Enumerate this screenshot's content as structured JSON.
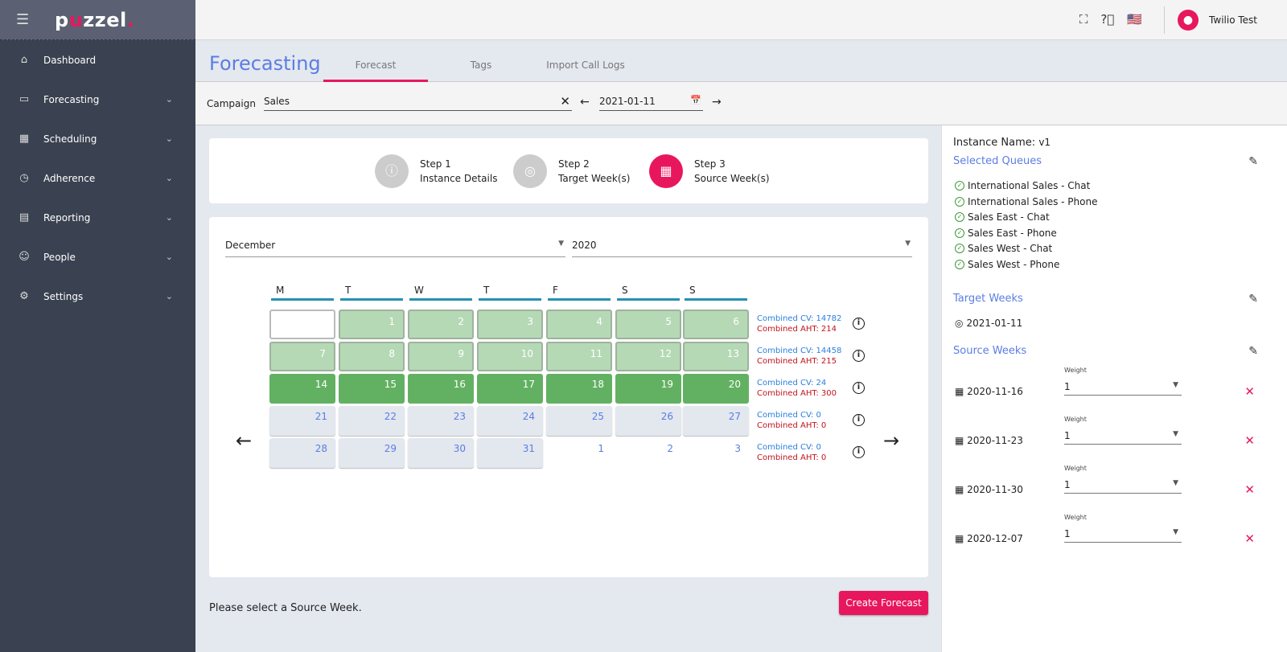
{
  "app": {
    "logo": "puzzel."
  },
  "sidebar": {
    "items": [
      {
        "label": "Dashboard",
        "icon": "home-icon"
      },
      {
        "label": "Forecasting",
        "icon": "chart-icon"
      },
      {
        "label": "Scheduling",
        "icon": "calendar-icon"
      },
      {
        "label": "Adherence",
        "icon": "watch-icon"
      },
      {
        "label": "Reporting",
        "icon": "report-icon"
      },
      {
        "label": "People",
        "icon": "people-icon"
      },
      {
        "label": "Settings",
        "icon": "gear-icon"
      }
    ]
  },
  "topbar": {
    "user": "Twilio Test"
  },
  "header": {
    "title": "Forecasting",
    "tabs": [
      "Forecast",
      "Tags",
      "Import Call Logs"
    ]
  },
  "campaign": {
    "label": "Campaign",
    "value": "Sales",
    "date": "2021-01-11"
  },
  "steps": [
    {
      "n": "Step 1",
      "label": "Instance Details"
    },
    {
      "n": "Step 2",
      "label": "Target Week(s)"
    },
    {
      "n": "Step 3",
      "label": "Source Week(s)"
    }
  ],
  "calendar": {
    "month": "December",
    "year": "2020",
    "dow": [
      "M",
      "T",
      "W",
      "T",
      "F",
      "S",
      "S"
    ],
    "weeks": [
      {
        "days": [
          "",
          "1",
          "2",
          "3",
          "4",
          "5",
          "6"
        ],
        "cv": "Combined CV: 14782",
        "aht": "Combined AHT: 214"
      },
      {
        "days": [
          "7",
          "8",
          "9",
          "10",
          "11",
          "12",
          "13"
        ],
        "cv": "Combined CV: 14458",
        "aht": "Combined AHT: 215"
      },
      {
        "days": [
          "14",
          "15",
          "16",
          "17",
          "18",
          "19",
          "20"
        ],
        "cv": "Combined CV: 24",
        "aht": "Combined AHT: 300"
      },
      {
        "days": [
          "21",
          "22",
          "23",
          "24",
          "25",
          "26",
          "27"
        ],
        "cv": "Combined CV: 0",
        "aht": "Combined AHT: 0"
      },
      {
        "days": [
          "28",
          "29",
          "30",
          "31",
          "1",
          "2",
          "3"
        ],
        "cv": "Combined CV: 0",
        "aht": "Combined AHT: 0"
      }
    ]
  },
  "footer": {
    "message": "Please select a Source Week.",
    "create": "Create Forecast"
  },
  "panel": {
    "instance_label": "Instance Name:",
    "instance_value": "v1",
    "queues_title": "Selected Queues",
    "queues": [
      "International Sales - Chat",
      "International Sales - Phone",
      "Sales East - Chat",
      "Sales East - Phone",
      "Sales West - Chat",
      "Sales West - Phone"
    ],
    "target_title": "Target Weeks",
    "target_week": "2021-01-11",
    "source_title": "Source Weeks",
    "weight_label": "Weight",
    "source_weeks": [
      {
        "date": "2020-11-16",
        "weight": "1"
      },
      {
        "date": "2020-11-23",
        "weight": "1"
      },
      {
        "date": "2020-11-30",
        "weight": "1"
      },
      {
        "date": "2020-12-07",
        "weight": "1"
      }
    ]
  },
  "colors": {
    "accent": "#e8175d",
    "link": "#5b7de3",
    "green": "#62b162",
    "light_green": "#b5d9b5"
  }
}
